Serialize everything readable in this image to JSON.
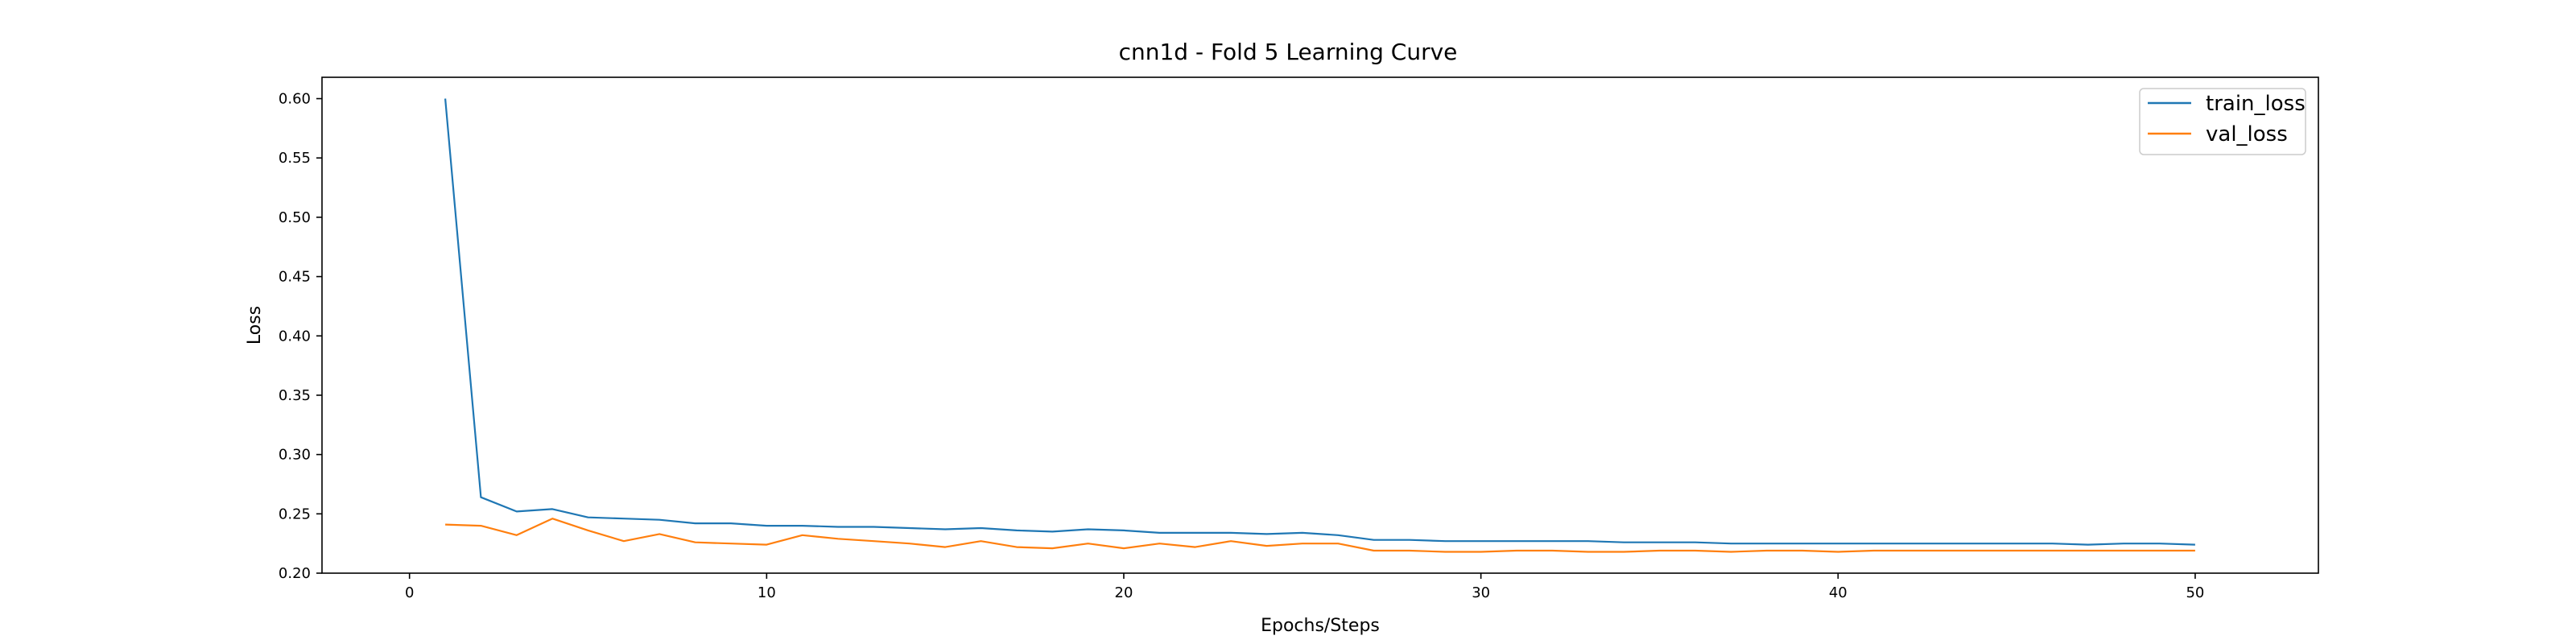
{
  "chart_data": {
    "type": "line",
    "title": "cnn1d - Fold 5 Learning Curve",
    "xlabel": "Epochs/Steps",
    "ylabel": "Loss",
    "xlim": [
      -2.45,
      53.45
    ],
    "ylim": [
      0.2,
      0.618
    ],
    "xticks": [
      0,
      10,
      20,
      30,
      40,
      50
    ],
    "yticks": [
      0.2,
      0.25,
      0.3,
      0.35,
      0.4,
      0.45,
      0.5,
      0.55,
      0.6
    ],
    "ytick_labels": [
      "0.20",
      "0.25",
      "0.30",
      "0.35",
      "0.40",
      "0.45",
      "0.50",
      "0.55",
      "0.60"
    ],
    "grid": false,
    "legend_position": "upper right",
    "x": [
      1,
      2,
      3,
      4,
      5,
      6,
      7,
      8,
      9,
      10,
      11,
      12,
      13,
      14,
      15,
      16,
      17,
      18,
      19,
      20,
      21,
      22,
      23,
      24,
      25,
      26,
      27,
      28,
      29,
      30,
      31,
      32,
      33,
      34,
      35,
      36,
      37,
      38,
      39,
      40,
      41,
      42,
      43,
      44,
      45,
      46,
      47,
      48,
      49,
      50
    ],
    "series": [
      {
        "name": "train_loss",
        "color": "#1f77b4",
        "values": [
          0.6,
          0.264,
          0.252,
          0.254,
          0.247,
          0.246,
          0.245,
          0.242,
          0.242,
          0.24,
          0.24,
          0.239,
          0.239,
          0.238,
          0.237,
          0.238,
          0.236,
          0.235,
          0.237,
          0.236,
          0.234,
          0.234,
          0.234,
          0.233,
          0.234,
          0.232,
          0.228,
          0.228,
          0.227,
          0.227,
          0.227,
          0.227,
          0.227,
          0.226,
          0.226,
          0.226,
          0.225,
          0.225,
          0.225,
          0.225,
          0.225,
          0.225,
          0.225,
          0.225,
          0.225,
          0.225,
          0.224,
          0.225,
          0.225,
          0.224
        ]
      },
      {
        "name": "val_loss",
        "color": "#ff7f0e",
        "values": [
          0.241,
          0.24,
          0.232,
          0.246,
          0.236,
          0.227,
          0.233,
          0.226,
          0.225,
          0.224,
          0.232,
          0.229,
          0.227,
          0.225,
          0.222,
          0.227,
          0.222,
          0.221,
          0.225,
          0.221,
          0.225,
          0.222,
          0.227,
          0.223,
          0.225,
          0.225,
          0.219,
          0.219,
          0.218,
          0.218,
          0.219,
          0.219,
          0.218,
          0.218,
          0.219,
          0.219,
          0.218,
          0.219,
          0.219,
          0.218,
          0.219,
          0.219,
          0.219,
          0.219,
          0.219,
          0.219,
          0.219,
          0.219,
          0.219,
          0.219
        ]
      }
    ]
  }
}
